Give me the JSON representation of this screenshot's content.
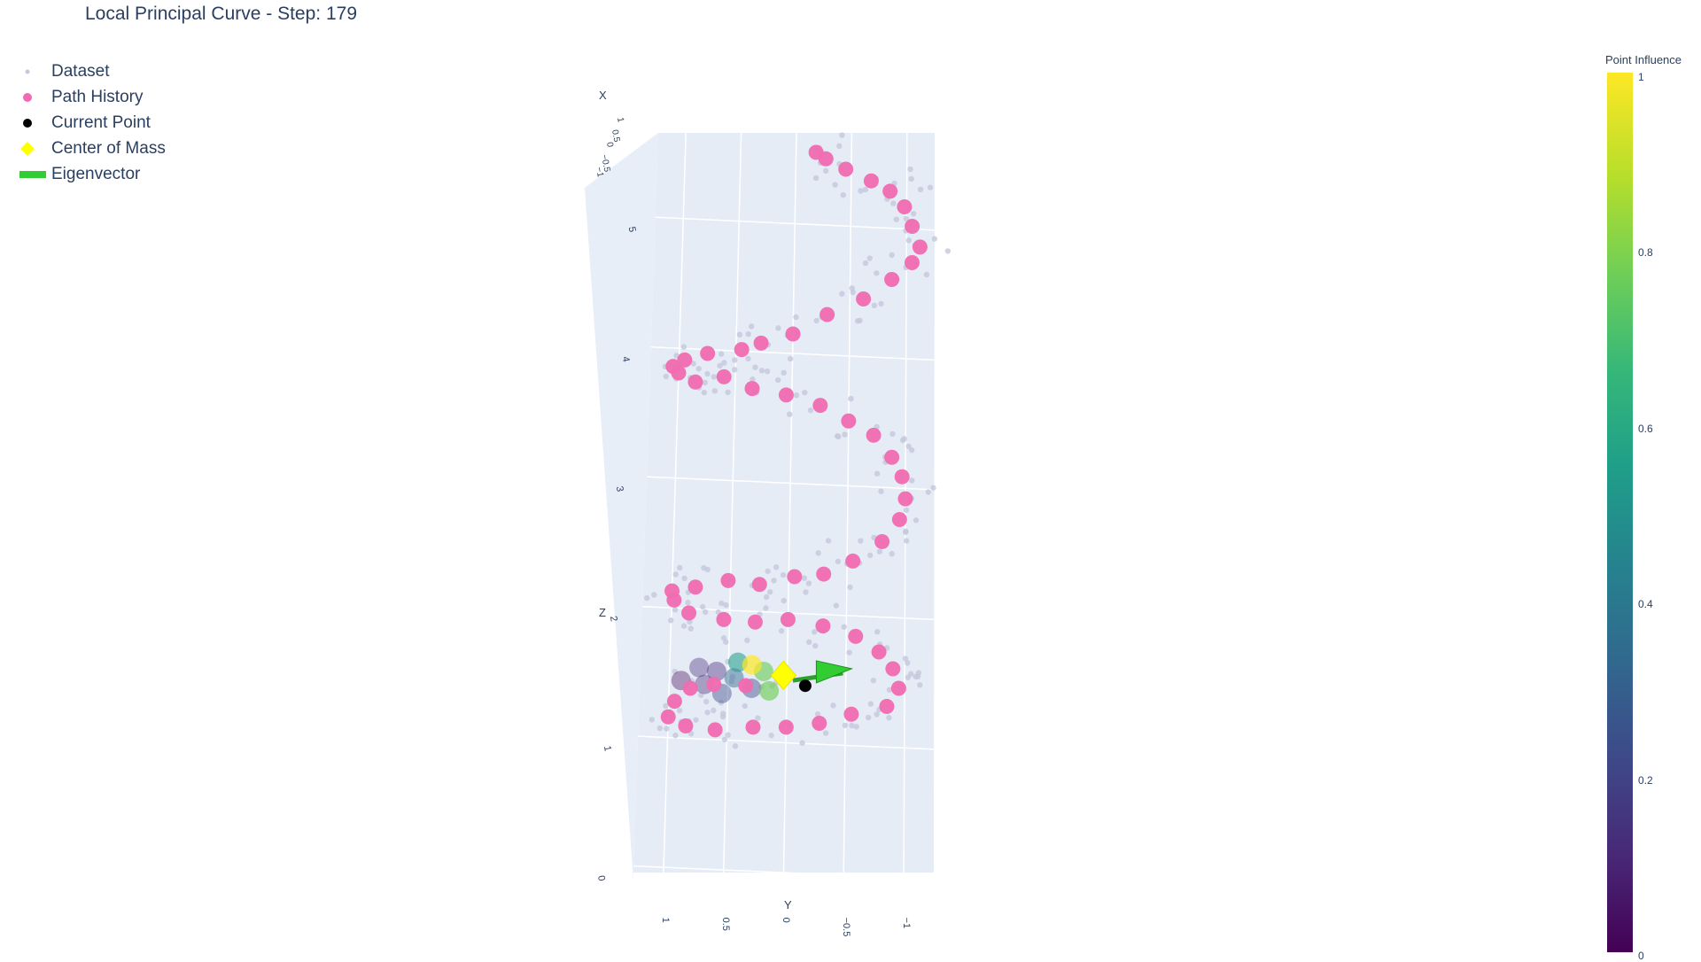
{
  "title": "Local Principal Curve - Step: 179",
  "legend": {
    "items": [
      {
        "label": "Dataset",
        "color": "#c4c8dc",
        "symbol": "dot-small"
      },
      {
        "label": "Path History",
        "color": "#f06bb0",
        "symbol": "circle"
      },
      {
        "label": "Current Point",
        "color": "#000000",
        "symbol": "circle"
      },
      {
        "label": "Center of Mass",
        "color": "#ffff00",
        "symbol": "diamond"
      },
      {
        "label": "Eigenvector",
        "color": "#32cd32",
        "symbol": "line"
      }
    ]
  },
  "colorbar": {
    "title": "Point Influence",
    "ticks": [
      "0",
      "0.2",
      "0.4",
      "0.6",
      "0.8",
      "1"
    ],
    "colorscale": "Viridis"
  },
  "axes": {
    "x": {
      "title": "X",
      "ticks": [
        "1",
        "0.5",
        "0",
        "−0.5",
        "−1"
      ]
    },
    "y": {
      "title": "Y",
      "ticks": [
        "1",
        "0.5",
        "0",
        "−0.5",
        "−1"
      ]
    },
    "z": {
      "title": "Z",
      "ticks": [
        "0",
        "1",
        "2",
        "3",
        "4",
        "5"
      ]
    }
  },
  "chart_data": {
    "type": "scatter",
    "title": "Local Principal Curve - Step: 179",
    "dimensions": 3,
    "series": [
      {
        "name": "Dataset",
        "description": "noisy helix points around the path"
      },
      {
        "name": "Path History",
        "points_yz": [
          [
            -0.18,
            5.55
          ],
          [
            -0.27,
            5.5
          ],
          [
            -0.45,
            5.42
          ],
          [
            -0.68,
            5.33
          ],
          [
            -0.85,
            5.25
          ],
          [
            -0.98,
            5.13
          ],
          [
            -1.05,
            4.98
          ],
          [
            -1.12,
            4.82
          ],
          [
            -1.05,
            4.7
          ],
          [
            -0.87,
            4.57
          ],
          [
            -0.62,
            4.42
          ],
          [
            -0.3,
            4.3
          ],
          [
            0.0,
            4.15
          ],
          [
            0.28,
            4.08
          ],
          [
            0.45,
            4.03
          ],
          [
            0.75,
            4.0
          ],
          [
            0.95,
            3.95
          ],
          [
            1.05,
            3.9
          ],
          [
            1.0,
            3.85
          ],
          [
            0.85,
            3.78
          ],
          [
            0.6,
            3.82
          ],
          [
            0.35,
            3.73
          ],
          [
            0.05,
            3.68
          ],
          [
            -0.25,
            3.6
          ],
          [
            -0.5,
            3.48
          ],
          [
            -0.72,
            3.37
          ],
          [
            -0.88,
            3.2
          ],
          [
            -0.97,
            3.05
          ],
          [
            -1.0,
            2.88
          ],
          [
            -0.95,
            2.72
          ],
          [
            -0.8,
            2.55
          ],
          [
            -0.55,
            2.4
          ],
          [
            -0.3,
            2.3
          ],
          [
            -0.05,
            2.28
          ],
          [
            0.25,
            2.22
          ],
          [
            0.52,
            2.25
          ],
          [
            0.8,
            2.2
          ],
          [
            1.0,
            2.17
          ],
          [
            0.98,
            2.1
          ],
          [
            0.85,
            2.0
          ],
          [
            0.55,
            1.95
          ],
          [
            0.28,
            1.93
          ],
          [
            0.0,
            1.95
          ],
          [
            -0.3,
            1.9
          ],
          [
            -0.58,
            1.82
          ],
          [
            -0.78,
            1.7
          ],
          [
            -0.9,
            1.57
          ],
          [
            -0.95,
            1.42
          ],
          [
            -0.85,
            1.28
          ],
          [
            -0.55,
            1.22
          ],
          [
            -0.28,
            1.15
          ],
          [
            0.0,
            1.12
          ],
          [
            0.28,
            1.12
          ],
          [
            0.6,
            1.1
          ],
          [
            0.85,
            1.13
          ],
          [
            1.0,
            1.2
          ],
          [
            0.95,
            1.32
          ],
          [
            0.82,
            1.42
          ],
          [
            0.62,
            1.45
          ],
          [
            0.35,
            1.44
          ]
        ]
      },
      {
        "name": "Current Point",
        "points_yz": [
          [
            -0.05,
            1.48
          ]
        ]
      },
      {
        "name": "Center of Mass",
        "points_yz": [
          [
            0.03,
            1.52
          ]
        ]
      },
      {
        "name": "Eigenvector",
        "from_yz": [
          -0.05,
          1.48
        ],
        "to_yz": [
          -0.55,
          1.55
        ]
      }
    ],
    "axis_ranges": {
      "x": [
        -1,
        1
      ],
      "y": [
        -1.25,
        1.25
      ],
      "z": [
        0,
        5.7
      ]
    },
    "colorbar_range": [
      0,
      1
    ]
  }
}
